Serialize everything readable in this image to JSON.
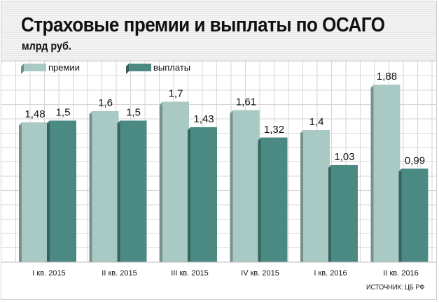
{
  "chart_data": {
    "type": "bar",
    "title": "Страховые премии и выплаты по ОСАГО",
    "subtitle": "млрд руб.",
    "categories": [
      "I кв. 2015",
      "II кв. 2015",
      "III кв. 2015",
      "IV кв. 2015",
      "I кв. 2016",
      "II кв. 2016"
    ],
    "series": [
      {
        "name": "премии",
        "values": [
          1.48,
          1.6,
          1.7,
          1.61,
          1.4,
          1.88
        ],
        "labels": [
          "1,48",
          "1,6",
          "1,7",
          "1,61",
          "1,4",
          "1,88"
        ],
        "color": "#a8c9c4"
      },
      {
        "name": "выплаты",
        "values": [
          1.5,
          1.5,
          1.43,
          1.32,
          1.03,
          0.99
        ],
        "labels": [
          "1,5",
          "1,5",
          "1,43",
          "1,32",
          "1,03",
          "0,99"
        ],
        "color": "#4a8a82"
      }
    ],
    "ylim": [
      0,
      2.0
    ],
    "grid": true,
    "legend_position": "top-left",
    "source": "ИСТОЧНИК: ЦБ РФ"
  }
}
